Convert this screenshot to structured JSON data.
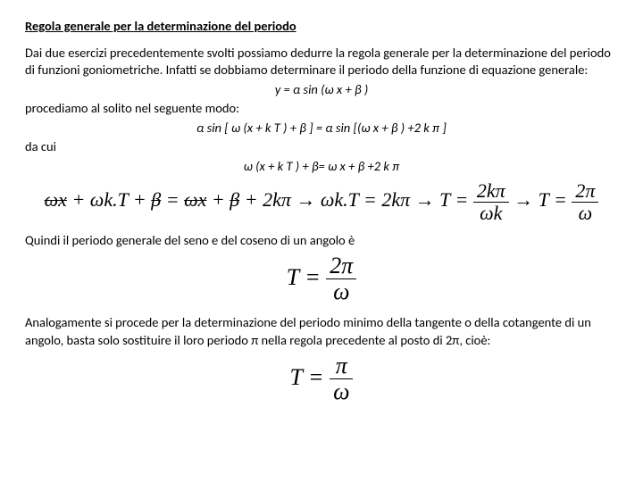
{
  "title": "Regola generale per la determinazione del periodo",
  "p1": "Dai due esercizi precedentemente svolti possiamo dedurre la regola generale per la determinazione del periodo di funzioni goniometriche. Infatti se dobbiamo determinare il periodo della funzione di equazione generale:",
  "eq1": "y = α sin (ω x + β )",
  "p2": "procediamo al solito nel seguente modo:",
  "eq2": "α sin [ ω (x + k T ) + β ] = α sin [(ω x + β ) +2 k π ]",
  "p3": "da cui",
  "eq3": "ω (x + k T ) + β= ω x + β +2 k π",
  "chain": {
    "s1a": "ωx",
    "s1b": " + ωk.T + ",
    "s1c": "β",
    "s1d": " = ",
    "s1e": "ωx",
    "s1f": " + ",
    "s1g": "β",
    "s1h": " + 2kπ → ωk.T = 2kπ → T = ",
    "frac1_num": "2kπ",
    "frac1_den": "ωk",
    "arrow": " → T = ",
    "frac2_num": "2π",
    "frac2_den": "ω"
  },
  "p4": "Quindi il periodo generale del seno e del coseno di un angolo è",
  "formula_T": {
    "lhs": "T = ",
    "num": "2π",
    "den": "ω"
  },
  "p5": "Analogamente si procede per la determinazione del periodo minimo della tangente o della cotangente di un angolo, basta solo sostituire il loro periodo π nella regola precedente al posto di 2π, cioè:",
  "formula_T2": {
    "lhs": "T = ",
    "num": "π",
    "den": "ω"
  }
}
